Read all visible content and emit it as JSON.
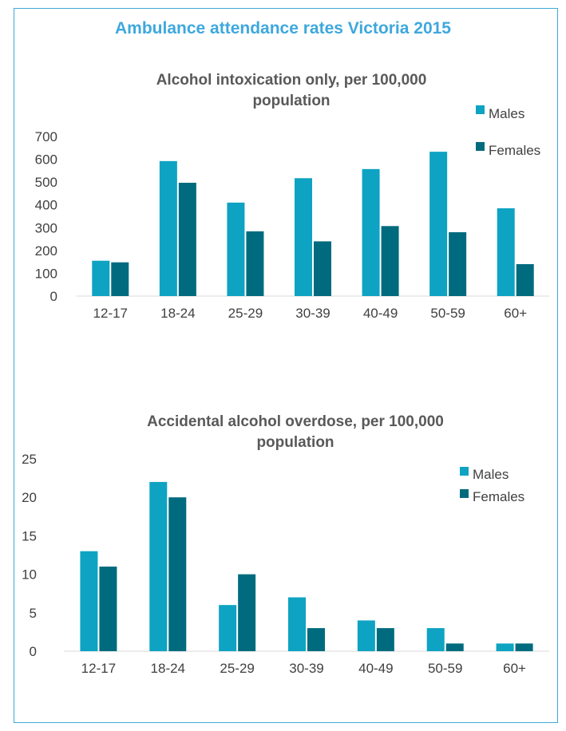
{
  "main_title": "Ambulance attendance rates Victoria 2015",
  "colors": {
    "males": "#0ea3c2",
    "females": "#006b7e",
    "title": "#3ea8dd",
    "border": "#3fa9d8"
  },
  "chart_data": [
    {
      "type": "bar",
      "title_lines": [
        "Alcohol intoxication only, per 100,000",
        "population"
      ],
      "categories": [
        "12-17",
        "18-24",
        "25-29",
        "30-39",
        "40-49",
        "50-59",
        "60+"
      ],
      "series": [
        {
          "name": "Males",
          "values": [
            155,
            592,
            410,
            517,
            557,
            633,
            385
          ]
        },
        {
          "name": "Females",
          "values": [
            148,
            497,
            284,
            240,
            307,
            280,
            140
          ]
        }
      ],
      "ylim": [
        0,
        700
      ],
      "yticks": [
        "0",
        "100",
        "200",
        "300",
        "400",
        "500",
        "600",
        "700"
      ],
      "grid": false,
      "legend": "top-right"
    },
    {
      "type": "bar",
      "title_lines": [
        "Accidental alcohol overdose, per 100,000",
        "population"
      ],
      "categories": [
        "12-17",
        "18-24",
        "25-29",
        "30-39",
        "40-49",
        "50-59",
        "60+"
      ],
      "series": [
        {
          "name": "Males",
          "values": [
            13,
            22,
            6,
            7,
            4,
            3,
            1
          ]
        },
        {
          "name": "Females",
          "values": [
            11,
            20,
            10,
            3,
            3,
            1,
            1
          ]
        }
      ],
      "ylim": [
        0,
        25
      ],
      "yticks": [
        "0",
        "5",
        "10",
        "15",
        "20",
        "25"
      ],
      "grid": false,
      "legend": "top-right"
    }
  ]
}
